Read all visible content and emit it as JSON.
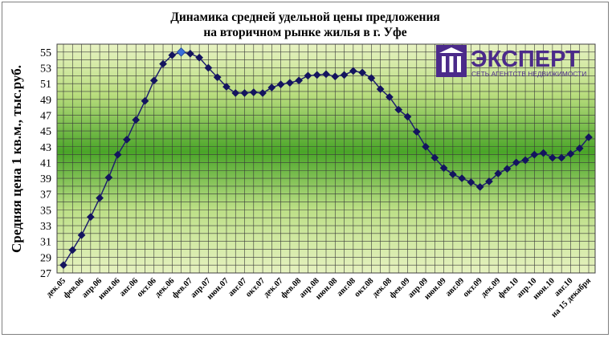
{
  "chart_data": {
    "type": "line",
    "title_lines": [
      "Динамика средней удельной цены предложения",
      "на вторичном рынке жилья в г. Уфе"
    ],
    "ylabel": "Средняя цена 1 кв.м., тыс.руб.",
    "ylim": [
      27,
      56
    ],
    "yticks": [
      27,
      29,
      31,
      33,
      35,
      37,
      39,
      41,
      43,
      45,
      47,
      49,
      51,
      53,
      55
    ],
    "grid": true,
    "x": [
      "дек.05",
      "янв.06",
      "фев.06",
      "мар.06",
      "апр.06",
      "май.06",
      "июн.06",
      "июл.06",
      "авг.06",
      "сен.06",
      "окт.06",
      "ноя.06",
      "дек.06",
      "янв.07",
      "фев.07",
      "мар.07",
      "апр.07",
      "май.07",
      "июн.07",
      "июл.07",
      "авг.07",
      "сен.07",
      "окт.07",
      "ноя.07",
      "дек.07",
      "янв.08",
      "фев.08",
      "мар.08",
      "апр.08",
      "май.08",
      "июн.08",
      "июл.08",
      "авг.08",
      "сен.08",
      "окт.08",
      "ноя.08",
      "дек.08",
      "янв.09",
      "фев.09",
      "мар.09",
      "апр.09",
      "май.09",
      "июн.09",
      "июл.09",
      "авг.09",
      "сен.09",
      "окт.09",
      "ноя.09",
      "дек.09",
      "янв.10",
      "фев.10",
      "мар.10",
      "апр.10",
      "май.10",
      "июн.10",
      "июл.10",
      "авг.10",
      "сен.10",
      "на 15 декабря"
    ],
    "xtick_labels": [
      "дек.05",
      "фев.06",
      "апр.06",
      "июн.06",
      "авг.06",
      "окт.06",
      "дек.06",
      "фев.07",
      "апр.07",
      "июн.07",
      "авг.07",
      "окт.07",
      "дек.07",
      "фев.08",
      "апр.08",
      "июн.08",
      "авг.08",
      "окт.08",
      "дек.08",
      "фев.09",
      "апр.09",
      "июн.09",
      "авг.09",
      "окт.09",
      "дек.09",
      "фев.10",
      "апр.10",
      "июн.10",
      "авг.10",
      "на 15 декабря"
    ],
    "series": [
      {
        "values": [
          28.0,
          29.9,
          31.8,
          34.1,
          36.5,
          39.1,
          42.0,
          43.9,
          46.4,
          48.8,
          51.4,
          53.5,
          54.6,
          55.0,
          54.8,
          54.3,
          53.0,
          51.8,
          50.6,
          49.8,
          49.8,
          49.9,
          49.8,
          50.5,
          50.9,
          51.1,
          51.4,
          52.0,
          52.1,
          52.2,
          51.9,
          52.1,
          52.6,
          52.4,
          51.7,
          50.3,
          49.3,
          47.7,
          46.8,
          44.9,
          43.0,
          41.6,
          40.3,
          39.5,
          39.0,
          38.5,
          37.9,
          38.6,
          39.6,
          40.2,
          41.0,
          41.3,
          42.0,
          42.2,
          41.6,
          41.6,
          42.1,
          42.8,
          44.2
        ],
        "highlight_index": 13
      }
    ]
  },
  "logo": {
    "word": "ЭКСПЕРТ",
    "subtitle": "СЕТЬ АГЕНТСТВ НЕДВИЖИМОСТИ"
  },
  "colors": {
    "line": "#1f1f6e",
    "marker": "#14145e",
    "highlight_marker": "#3a6fd8",
    "grid": "#3a3a3a",
    "bg_light": "#e4f0b8",
    "bg_dark": "#4aa528",
    "logo": "#4b2a8a"
  }
}
